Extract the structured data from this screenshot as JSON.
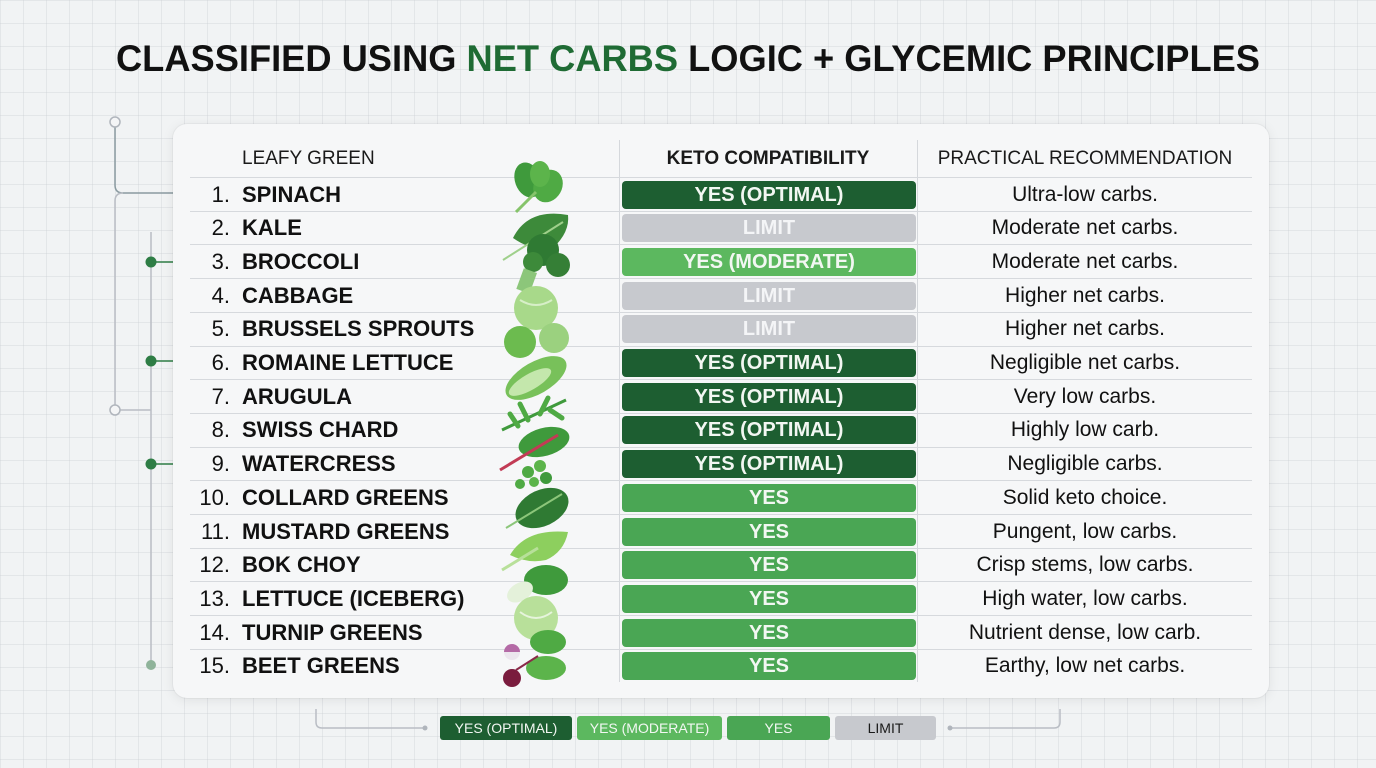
{
  "title": {
    "prefix": "CLASSIFIED USING ",
    "accent": "NET CARBS",
    "suffix": " LOGIC + GLYCEMIC PRINCIPLES"
  },
  "colors": {
    "optimal": "#1d5e31",
    "moderate": "#5cb85f",
    "yes": "#4aa654",
    "limit": "#c7c9ce",
    "accent": "#1f6b34"
  },
  "table": {
    "headers": {
      "green": "LEAFY GREEN",
      "keto": "KETO COMPATIBILITY",
      "rec": "PRACTICAL RECOMMENDATION"
    },
    "rows": [
      {
        "num": "1.",
        "name": "SPINACH",
        "keto": "YES (OPTIMAL)",
        "level": "optimal",
        "rec": "Ultra-low carbs."
      },
      {
        "num": "2.",
        "name": "KALE",
        "keto": "LIMIT",
        "level": "limit",
        "rec": "Moderate net carbs."
      },
      {
        "num": "3.",
        "name": "BROCCOLI",
        "keto": "YES (MODERATE)",
        "level": "moderate",
        "rec": "Moderate net carbs."
      },
      {
        "num": "4.",
        "name": "CABBAGE",
        "keto": "LIMIT",
        "level": "limit",
        "rec": "Higher net carbs."
      },
      {
        "num": "5.",
        "name": "BRUSSELS SPROUTS",
        "keto": "LIMIT",
        "level": "limit",
        "rec": "Higher net carbs."
      },
      {
        "num": "6.",
        "name": "ROMAINE LETTUCE",
        "keto": "YES (OPTIMAL)",
        "level": "optimal",
        "rec": "Negligible net carbs."
      },
      {
        "num": "7.",
        "name": "ARUGULA",
        "keto": "YES (OPTIMAL)",
        "level": "optimal",
        "rec": "Very low carbs."
      },
      {
        "num": "8.",
        "name": "SWISS CHARD",
        "keto": "YES (OPTIMAL)",
        "level": "optimal",
        "rec": "Highly low carb."
      },
      {
        "num": "9.",
        "name": "WATERCRESS",
        "keto": "YES (OPTIMAL)",
        "level": "optimal",
        "rec": "Negligible carbs."
      },
      {
        "num": "10.",
        "name": "COLLARD GREENS",
        "keto": "YES",
        "level": "yes",
        "rec": "Solid keto choice."
      },
      {
        "num": "11.",
        "name": "MUSTARD GREENS",
        "keto": "YES",
        "level": "yes",
        "rec": "Pungent, low carbs."
      },
      {
        "num": "12.",
        "name": "BOK CHOY",
        "keto": "YES",
        "level": "yes",
        "rec": "Crisp stems, low carbs."
      },
      {
        "num": "13.",
        "name": "LETTUCE (ICEBERG)",
        "keto": "YES",
        "level": "yes",
        "rec": "High water, low carbs."
      },
      {
        "num": "14.",
        "name": "TURNIP GREENS",
        "keto": "YES",
        "level": "yes",
        "rec": "Nutrient dense, low carb."
      },
      {
        "num": "15.",
        "name": "BEET GREENS",
        "keto": "YES",
        "level": "yes",
        "rec": "Earthy, low net carbs."
      }
    ]
  },
  "legend": [
    {
      "label": "YES (OPTIMAL)",
      "level": "optimal"
    },
    {
      "label": "YES (MODERATE)",
      "level": "moderate"
    },
    {
      "label": "YES",
      "level": "yes"
    },
    {
      "label": "LIMIT",
      "level": "limit"
    }
  ]
}
